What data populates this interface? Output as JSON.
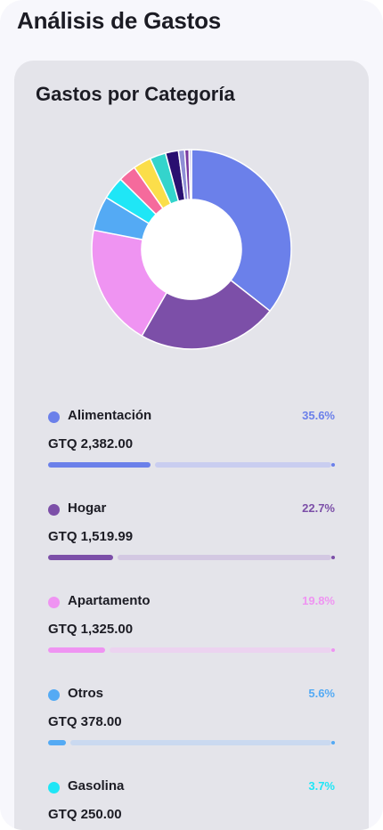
{
  "header": {
    "title": "Análisis de Gastos"
  },
  "card": {
    "title": "Gastos por Categoría"
  },
  "chart_data": {
    "type": "pie",
    "title": "Gastos por Categoría",
    "donut": true,
    "slices": [
      {
        "label": "Alimentación",
        "percent": 35.6,
        "color": "#6b80ea"
      },
      {
        "label": "Hogar",
        "percent": 22.7,
        "color": "#7c4fa8"
      },
      {
        "label": "Apartamento",
        "percent": 19.8,
        "color": "#ef94f2"
      },
      {
        "label": "Otros",
        "percent": 5.6,
        "color": "#54aaf4"
      },
      {
        "label": "Gasolina",
        "percent": 3.7,
        "color": "#1fe6f6"
      },
      {
        "percent": 2.9,
        "color": "#f56a9c"
      },
      {
        "percent": 2.9,
        "color": "#fbde4a"
      },
      {
        "percent": 2.6,
        "color": "#34d4cc"
      },
      {
        "percent": 2.1,
        "color": "#2a0f70"
      },
      {
        "percent": 1.0,
        "color": "#8f8fd6"
      },
      {
        "percent": 0.7,
        "color": "#7a3aa0"
      },
      {
        "percent": 0.4,
        "color": "#c7c7ee"
      }
    ]
  },
  "categories": [
    {
      "name": "Alimentación",
      "percent_label": "35.6%",
      "amount": "GTQ 2,382.00",
      "fraction": 0.356,
      "color": "#6b80ea",
      "track": "#c9cdf0"
    },
    {
      "name": "Hogar",
      "percent_label": "22.7%",
      "amount": "GTQ 1,519.99",
      "fraction": 0.227,
      "color": "#7c4fa8",
      "track": "#d3c8e2"
    },
    {
      "name": "Apartamento",
      "percent_label": "19.8%",
      "amount": "GTQ 1,325.00",
      "fraction": 0.198,
      "color": "#ef94f2",
      "track": "#ecd3f0"
    },
    {
      "name": "Otros",
      "percent_label": "5.6%",
      "amount": "GTQ 378.00",
      "fraction": 0.056,
      "color": "#54aaf4",
      "track": "#cad9f0"
    },
    {
      "name": "Gasolina",
      "percent_label": "3.7%",
      "amount": "GTQ 250.00",
      "fraction": 0.037,
      "color": "#1fe6f6",
      "track": "#c8ecf2"
    }
  ]
}
